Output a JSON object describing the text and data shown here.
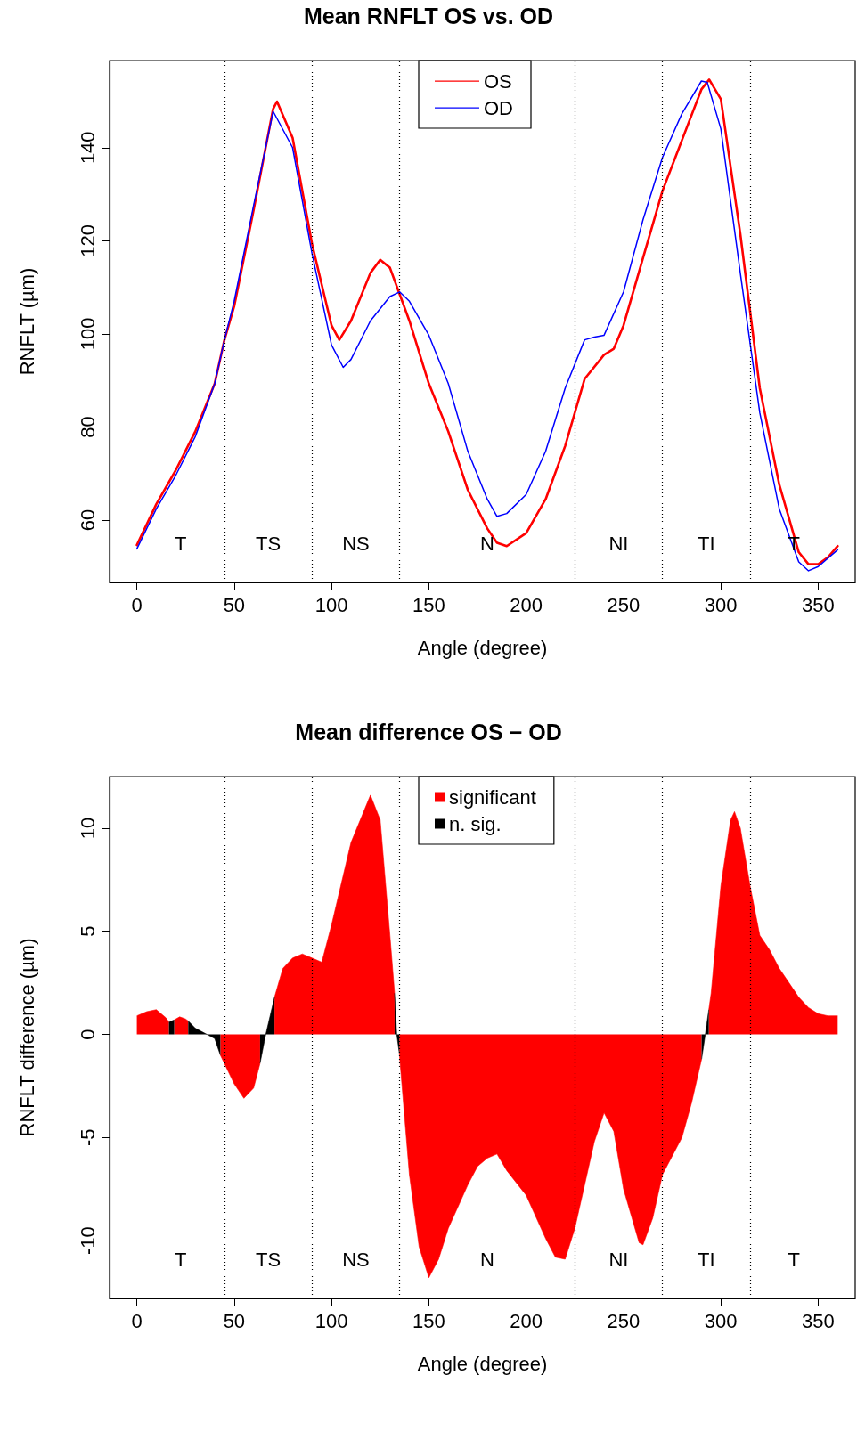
{
  "chart_data": [
    {
      "type": "line",
      "title": "Mean RNFLT OS vs. OD",
      "xlabel": "Angle (degree)",
      "ylabel": "RNFLT (µm)",
      "xlim": [
        -14,
        369
      ],
      "xticks": [
        0,
        50,
        100,
        150,
        200,
        250,
        300,
        350
      ],
      "ylim": [
        46.6,
        158.7
      ],
      "yticks": [
        60,
        80,
        100,
        120,
        140
      ],
      "grid": false,
      "legend": "top",
      "marker": "none",
      "line_style": "solid",
      "x": [
        0,
        10,
        20,
        30,
        40,
        45,
        50,
        60,
        70,
        72,
        80,
        90,
        100,
        104,
        110,
        120,
        125,
        130,
        140,
        150,
        160,
        170,
        180,
        185,
        190,
        200,
        210,
        220,
        230,
        240,
        245,
        250,
        260,
        270,
        280,
        290,
        294,
        300,
        310,
        320,
        330,
        340,
        345,
        350,
        355,
        360
      ],
      "series": [
        {
          "name": "OS",
          "color": "#ff0000",
          "values": [
            54.6,
            63.4,
            70.7,
            79.0,
            89.3,
            98.7,
            105.9,
            126.6,
            148.3,
            149.9,
            142.1,
            119.3,
            101.8,
            98.7,
            102.8,
            113.1,
            115.9,
            114.2,
            102.8,
            89.3,
            79.0,
            66.5,
            58.2,
            55.1,
            54.4,
            57.2,
            64.5,
            75.9,
            90.3,
            95.5,
            96.8,
            101.8,
            116.3,
            130.7,
            141.6,
            152.5,
            154.6,
            150.4,
            121.4,
            88.3,
            67.6,
            53.1,
            50.5,
            50.5,
            52.0,
            54.4
          ]
        },
        {
          "name": "OD",
          "color": "#0000ff",
          "x": [
            0,
            10,
            20,
            30,
            40,
            45,
            50,
            60,
            70,
            80,
            90,
            100,
            106,
            110,
            120,
            130,
            135,
            140,
            150,
            160,
            170,
            180,
            185,
            190,
            200,
            210,
            220,
            230,
            235,
            240,
            250,
            260,
            270,
            280,
            290,
            293,
            300,
            310,
            320,
            330,
            340,
            345,
            350,
            360
          ],
          "values": [
            53.8,
            62.4,
            69.6,
            77.9,
            89.3,
            98.7,
            107.0,
            127.6,
            147.8,
            140.0,
            117.2,
            97.6,
            92.8,
            94.5,
            102.8,
            108.0,
            109.0,
            107.0,
            99.7,
            89.3,
            74.8,
            64.5,
            60.8,
            61.4,
            65.5,
            74.8,
            88.3,
            98.7,
            99.3,
            99.7,
            109.0,
            124.5,
            137.9,
            147.3,
            154.3,
            154.0,
            144.0,
            113.0,
            83.0,
            62.4,
            51.0,
            49.1,
            50.0,
            53.6
          ]
        }
      ],
      "ref_lines": [
        {
          "axis": "x",
          "value": 45,
          "color": "#000000",
          "line_style": "dotted"
        },
        {
          "axis": "x",
          "value": 90,
          "color": "#000000",
          "line_style": "dotted"
        },
        {
          "axis": "x",
          "value": 135,
          "color": "#000000",
          "line_style": "dotted"
        },
        {
          "axis": "x",
          "value": 225,
          "color": "#000000",
          "line_style": "dotted"
        },
        {
          "axis": "x",
          "value": 270,
          "color": "#000000",
          "line_style": "dotted"
        },
        {
          "axis": "x",
          "value": 315,
          "color": "#000000",
          "line_style": "dotted"
        }
      ],
      "annotations": [
        "T",
        "TS",
        "NS",
        "N",
        "NI",
        "TI",
        "T"
      ]
    },
    {
      "type": "area",
      "title": "Mean difference OS − OD",
      "xlabel": "Angle (degree)",
      "ylabel": "RNFLT difference (µm)",
      "xlim": [
        -14,
        369
      ],
      "xticks": [
        0,
        50,
        100,
        150,
        200,
        250,
        300,
        350
      ],
      "ylim": [
        -12.8,
        12.5
      ],
      "yticks": [
        -10,
        -5,
        0,
        5,
        10
      ],
      "grid": false,
      "legend": "top",
      "series": [
        {
          "name": "significant",
          "color": "#ff0000",
          "x": [
            0,
            5,
            10,
            15,
            16.5,
            17.8,
            19.2,
            22,
            25,
            26.4,
            35,
            42.9,
            50,
            55,
            60,
            63.3,
            67,
            70.7,
            75,
            80,
            85,
            90,
            95,
            100,
            110,
            120,
            125,
            130,
            132.4,
            133.6,
            134.8,
            140,
            145,
            150,
            155,
            160,
            170,
            175,
            180,
            185,
            190,
            200,
            210,
            215,
            220,
            225,
            235,
            240,
            245,
            250,
            258,
            260,
            265,
            270,
            275,
            280,
            285,
            290.1,
            292,
            293.8,
            295,
            300,
            305,
            307,
            310,
            315,
            320,
            325,
            330,
            335,
            340,
            345,
            350,
            355,
            360
          ],
          "values": [
            0.9,
            1.1,
            1.2,
            0.8,
            0.6,
            null,
            0.7,
            0.85,
            0.75,
            0.65,
            null,
            -1.0,
            -2.4,
            -3.1,
            -2.6,
            -1.4,
            null,
            1.8,
            3.2,
            3.7,
            3.9,
            3.7,
            3.5,
            5.3,
            9.3,
            11.6,
            10.4,
            4.8,
            2.0,
            null,
            -0.9,
            -6.8,
            -10.3,
            -11.8,
            -10.9,
            -9.4,
            -7.3,
            -6.4,
            -6.0,
            -5.8,
            -6.6,
            -7.8,
            -9.9,
            -10.8,
            -10.9,
            -9.4,
            -5.2,
            -3.8,
            -4.7,
            -7.5,
            -10.1,
            -10.2,
            -8.9,
            -6.8,
            -5.9,
            -5.0,
            -3.3,
            -1.2,
            null,
            1.2,
            2.0,
            7.2,
            10.4,
            10.8,
            10.0,
            7.2,
            4.8,
            4.1,
            3.2,
            2.5,
            1.8,
            1.3,
            1.0,
            0.9,
            0.9
          ]
        },
        {
          "name": "n. sig.",
          "color": "#000000",
          "x": [
            16.5,
            19.2,
            22,
            26.4,
            30,
            35,
            40,
            42.9,
            55,
            63.3,
            66,
            70.7,
            100,
            132.4,
            133.5,
            134.8,
            200,
            290.1,
            292,
            293.8
          ],
          "values": [
            0.6,
            0.7,
            null,
            0.65,
            0.3,
            0.05,
            -0.2,
            -1.0,
            null,
            -1.4,
            -0.1,
            1.8,
            null,
            2.0,
            0,
            -0.9,
            null,
            -1.2,
            0,
            1.2
          ]
        }
      ],
      "ref_lines": [
        {
          "axis": "x",
          "value": 45,
          "color": "#000000",
          "line_style": "dotted"
        },
        {
          "axis": "x",
          "value": 90,
          "color": "#000000",
          "line_style": "dotted"
        },
        {
          "axis": "x",
          "value": 135,
          "color": "#000000",
          "line_style": "dotted"
        },
        {
          "axis": "x",
          "value": 225,
          "color": "#000000",
          "line_style": "dotted"
        },
        {
          "axis": "x",
          "value": 270,
          "color": "#000000",
          "line_style": "dotted"
        },
        {
          "axis": "x",
          "value": 315,
          "color": "#000000",
          "line_style": "dotted"
        }
      ],
      "annotations": [
        "T",
        "TS",
        "NS",
        "N",
        "NI",
        "TI",
        "T"
      ]
    }
  ]
}
